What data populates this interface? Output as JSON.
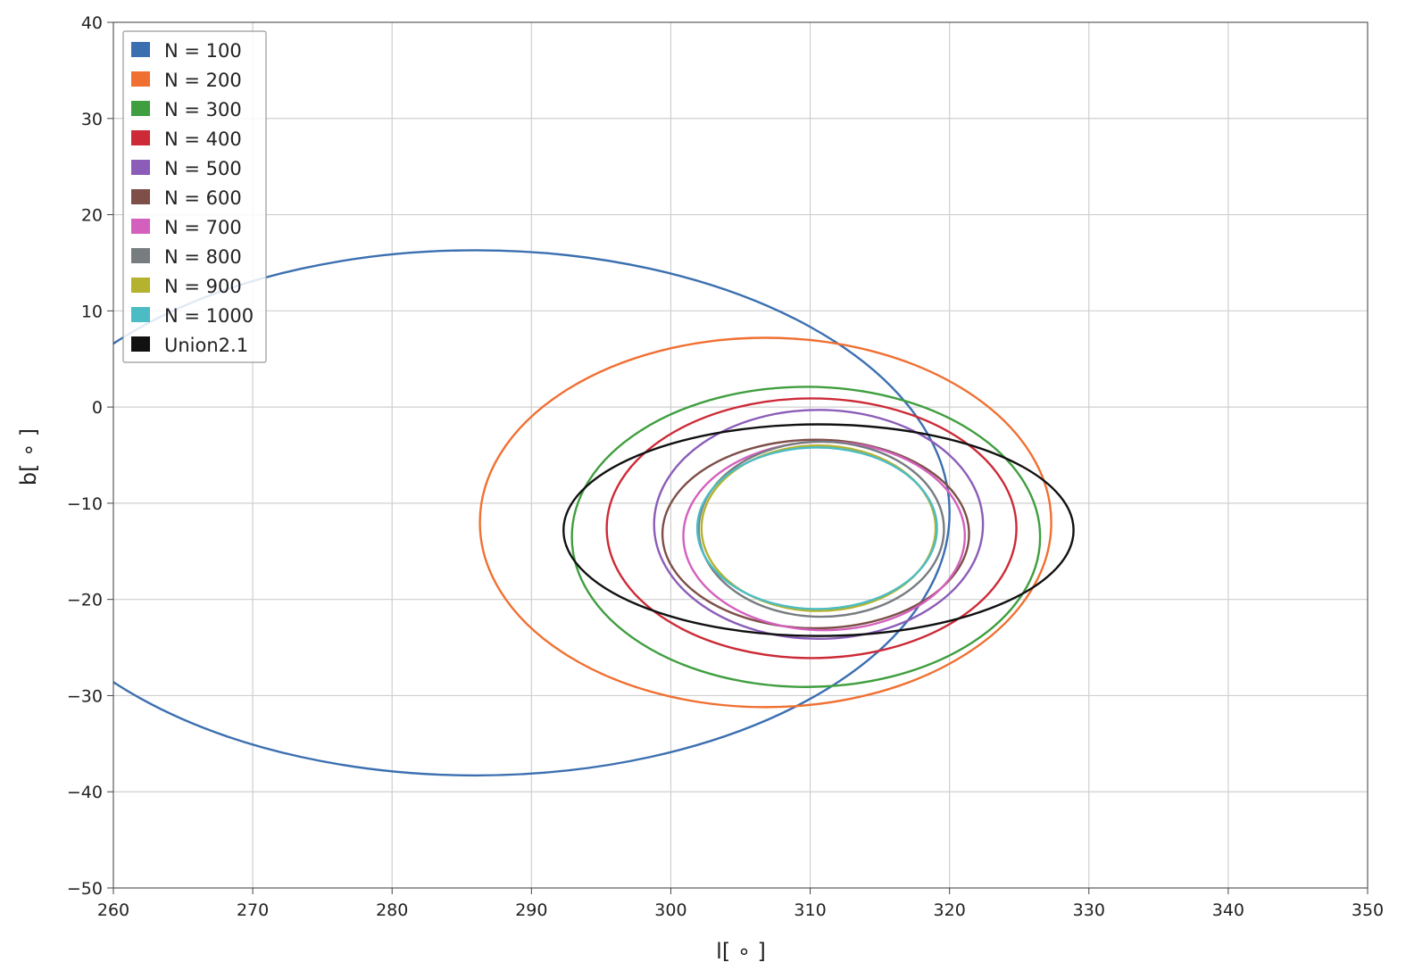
{
  "chart_data": {
    "type": "line",
    "xlabel": "l[ ∘ ]",
    "ylabel": "b[ ∘ ]",
    "xlim": [
      260,
      350
    ],
    "ylim": [
      -50,
      40
    ],
    "xticks": [
      260,
      270,
      280,
      290,
      300,
      310,
      320,
      330,
      340,
      350
    ],
    "yticks": [
      40,
      30,
      20,
      10,
      0,
      -10,
      -20,
      -30,
      -40,
      -50
    ],
    "ytick_labels": [
      "40",
      "30",
      "20",
      "10",
      "0",
      "−10",
      "−20",
      "−30",
      "−40",
      "−50"
    ],
    "grid": true,
    "legend_position": "top-left",
    "series": [
      {
        "name": "N = 100",
        "color": "#3b6fb0",
        "shape": "ellipse",
        "center": [
          286.0,
          -11.0
        ],
        "rx": 34.0,
        "ry": 27.3
      },
      {
        "name": "N = 200",
        "color": "#f07032",
        "shape": "ellipse",
        "center": [
          306.8,
          -12.0
        ],
        "rx": 20.5,
        "ry": 19.2
      },
      {
        "name": "N = 300",
        "color": "#3f9e3f",
        "shape": "ellipse",
        "center": [
          309.7,
          -13.5
        ],
        "rx": 16.8,
        "ry": 15.6
      },
      {
        "name": "N = 400",
        "color": "#cc2a36",
        "shape": "ellipse",
        "center": [
          310.1,
          -12.6
        ],
        "rx": 14.7,
        "ry": 13.5
      },
      {
        "name": "N = 500",
        "color": "#8b5db8",
        "shape": "ellipse",
        "center": [
          310.6,
          -12.2
        ],
        "rx": 11.8,
        "ry": 11.9
      },
      {
        "name": "N = 600",
        "color": "#7d4f48",
        "shape": "ellipse",
        "center": [
          310.4,
          -13.2
        ],
        "rx": 11.0,
        "ry": 9.8
      },
      {
        "name": "N = 700",
        "color": "#d460bd",
        "shape": "ellipse",
        "center": [
          311.0,
          -13.4
        ],
        "rx": 10.1,
        "ry": 9.8
      },
      {
        "name": "N = 800",
        "color": "#777c80",
        "shape": "ellipse",
        "center": [
          310.8,
          -12.7
        ],
        "rx": 8.8,
        "ry": 9.1
      },
      {
        "name": "N = 900",
        "color": "#b4b22e",
        "shape": "ellipse",
        "center": [
          310.6,
          -12.6
        ],
        "rx": 8.4,
        "ry": 8.6
      },
      {
        "name": "N = 1000",
        "color": "#4cbcc4",
        "shape": "ellipse",
        "center": [
          310.5,
          -12.6
        ],
        "rx": 8.6,
        "ry": 8.4
      },
      {
        "name": "Union2.1",
        "color": "#111111",
        "shape": "ellipse",
        "center": [
          310.6,
          -12.8
        ],
        "rx": 18.3,
        "ry": 11.0
      }
    ]
  }
}
